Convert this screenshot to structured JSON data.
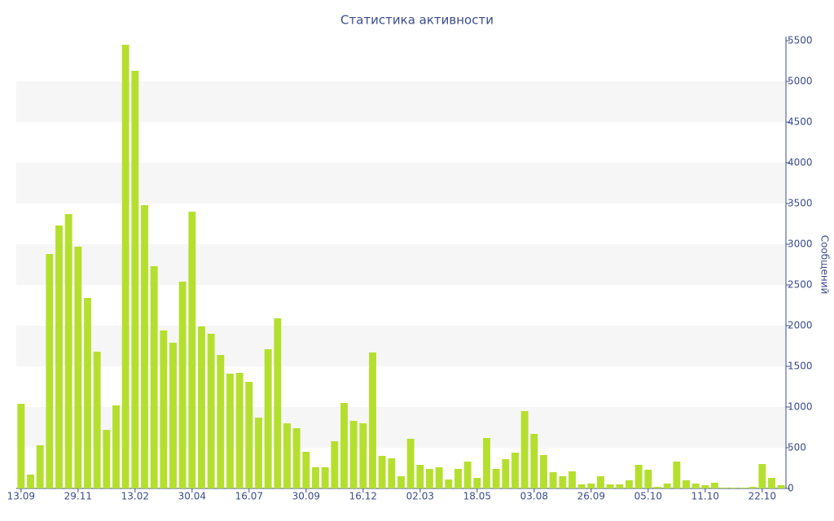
{
  "chart_data": {
    "type": "bar",
    "title": "Статистика активности",
    "y_label": "Сообщений",
    "categories": [
      "13.09",
      null,
      null,
      null,
      null,
      null,
      "29.11",
      null,
      null,
      null,
      null,
      null,
      "13.02",
      null,
      null,
      null,
      null,
      null,
      "30.04",
      null,
      null,
      null,
      null,
      null,
      "16.07",
      null,
      null,
      null,
      null,
      null,
      "30.09",
      null,
      null,
      null,
      null,
      null,
      "16.12",
      null,
      null,
      null,
      null,
      null,
      "02.03",
      null,
      null,
      null,
      null,
      null,
      "18.05",
      null,
      null,
      null,
      null,
      null,
      "03.08",
      null,
      null,
      null,
      null,
      null,
      "26.09",
      null,
      null,
      null,
      null,
      null,
      "05.10",
      null,
      null,
      null,
      null,
      null,
      "11.10",
      null,
      null,
      null,
      null,
      null,
      "22.10",
      null,
      null
    ],
    "values": [
      1040,
      170,
      530,
      2880,
      3230,
      3370,
      2970,
      2340,
      1680,
      720,
      1020,
      5450,
      5130,
      3480,
      2730,
      1940,
      1790,
      2540,
      3400,
      1990,
      1900,
      1640,
      1410,
      1420,
      1310,
      870,
      1710,
      2090,
      800,
      740,
      450,
      260,
      260,
      580,
      1050,
      830,
      800,
      1670,
      400,
      370,
      150,
      610,
      290,
      240,
      260,
      110,
      240,
      330,
      130,
      620,
      240,
      360,
      440,
      950,
      670,
      410,
      200,
      150,
      210,
      50,
      60,
      150,
      50,
      50,
      100,
      290,
      230,
      20,
      60,
      330,
      100,
      60,
      40,
      70,
      10,
      10,
      10,
      20,
      300,
      130,
      40
    ],
    "color": "#b5df2e",
    "ylim": [
      0,
      5500
    ],
    "yticks": [
      0,
      500,
      1000,
      1500,
      2000,
      2500,
      3000,
      3500,
      4000,
      4500,
      5000,
      5500
    ],
    "grid": "bands"
  }
}
